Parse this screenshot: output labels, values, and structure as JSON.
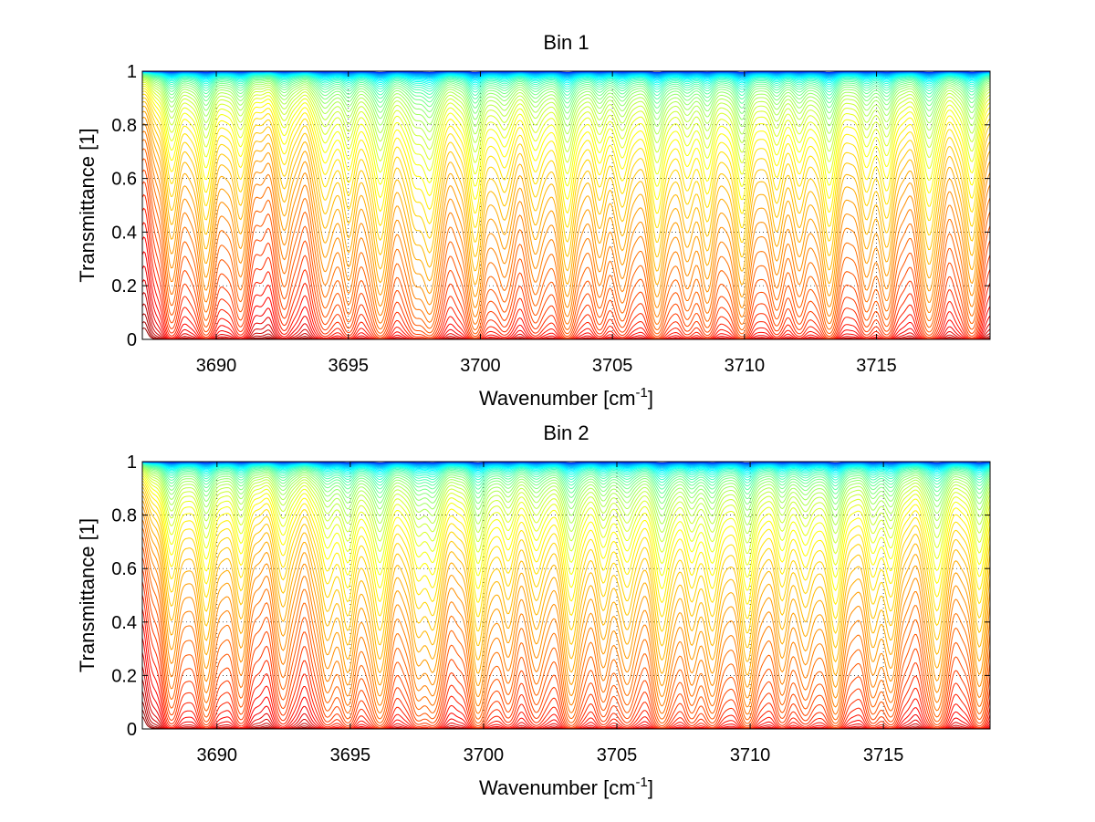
{
  "chart_data": [
    {
      "type": "line",
      "title": "Bin 1",
      "xlabel": "Wavenumber [cm",
      "xlabel_sup": "-1",
      "xlabel_end": "]",
      "ylabel": "Transmittance [1]",
      "xlim": [
        3687.2,
        3719.3
      ],
      "ylim": [
        0,
        1
      ],
      "xticks": [
        3690,
        3695,
        3700,
        3705,
        3710,
        3715
      ],
      "xtick_labels": [
        "3690",
        "3695",
        "3700",
        "3705",
        "3710",
        "3715"
      ],
      "yticks": [
        0,
        0.2,
        0.4,
        0.6,
        0.8,
        1
      ],
      "ytick_labels": [
        "0",
        "0.2",
        "0.4",
        "0.6",
        "0.8",
        "1"
      ],
      "grid": true,
      "legend": "none",
      "colormap": "jet",
      "num_series": 60,
      "absorption_lines_cm-1": [
        3688.3,
        3689.6,
        3690.9,
        3692.6,
        3694.1,
        3695.0,
        3696.2,
        3697.5,
        3698.1,
        3699.8,
        3700.9,
        3702.1,
        3703.3,
        3704.5,
        3705.4,
        3706.7,
        3707.8,
        3708.6,
        3709.9,
        3711.2,
        3712.1,
        3713.2,
        3714.6,
        3715.4,
        3717.0,
        3718.6
      ],
      "line_depths": [
        0.6,
        0.8,
        0.55,
        0.45,
        0.6,
        0.6,
        1.0,
        0.55,
        0.9,
        1.0,
        0.5,
        0.55,
        1.0,
        0.5,
        0.6,
        1.0,
        0.5,
        0.7,
        1.0,
        0.55,
        0.5,
        1.0,
        0.55,
        0.7,
        1.0,
        0.9
      ],
      "transmittance_envelope": {
        "min_curve_floor": 0.0,
        "max_curve_top": 1.0
      }
    },
    {
      "type": "line",
      "title": "Bin 2",
      "xlabel": "Wavenumber [cm",
      "xlabel_sup": "-1",
      "xlabel_end": "]",
      "ylabel": "Transmittance [1]",
      "xlim": [
        3687.2,
        3719.0
      ],
      "ylim": [
        0,
        1
      ],
      "xticks": [
        3690,
        3695,
        3700,
        3705,
        3710,
        3715
      ],
      "xtick_labels": [
        "3690",
        "3695",
        "3700",
        "3705",
        "3710",
        "3715"
      ],
      "yticks": [
        0,
        0.2,
        0.4,
        0.6,
        0.8,
        1
      ],
      "ytick_labels": [
        "0",
        "0.2",
        "0.4",
        "0.6",
        "0.8",
        "1"
      ],
      "grid": true,
      "legend": "none",
      "colormap": "jet",
      "num_series": 60,
      "absorption_lines_cm-1": [
        3688.3,
        3689.6,
        3690.9,
        3692.5,
        3694.1,
        3694.9,
        3696.1,
        3697.5,
        3698.1,
        3699.8,
        3700.9,
        3702.0,
        3703.3,
        3704.5,
        3705.4,
        3706.7,
        3707.8,
        3708.6,
        3709.9,
        3711.2,
        3712.1,
        3713.2,
        3714.6,
        3715.3,
        3717.0,
        3718.6
      ],
      "line_depths": [
        0.65,
        0.8,
        0.6,
        0.55,
        0.6,
        0.75,
        1.0,
        0.6,
        0.75,
        1.0,
        0.5,
        0.55,
        1.0,
        0.55,
        0.65,
        1.0,
        0.55,
        0.75,
        1.0,
        0.6,
        0.55,
        1.0,
        0.6,
        0.7,
        1.0,
        0.9
      ],
      "transmittance_envelope": {
        "min_curve_floor": 0.0,
        "max_curve_top": 1.0
      }
    }
  ]
}
